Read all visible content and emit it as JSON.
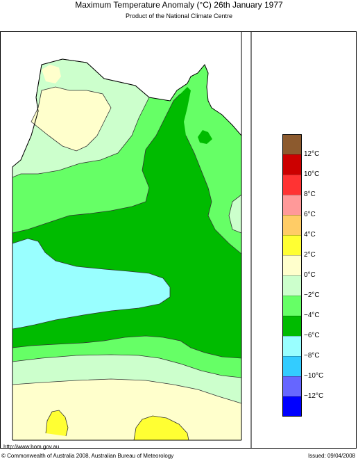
{
  "title": "Maximum Temperature Anomaly (°C)  26th January 1977",
  "subtitle": "Product of the National Climate Centre",
  "legend": {
    "bands": [
      {
        "label": "12°C",
        "color": "#8c5a2e"
      },
      {
        "label": "10°C",
        "color": "#cc0000"
      },
      {
        "label": "8°C",
        "color": "#ff3333"
      },
      {
        "label": "6°C",
        "color": "#ff9999"
      },
      {
        "label": "4°C",
        "color": "#ffcc66"
      },
      {
        "label": "2°C",
        "color": "#ffff33"
      },
      {
        "label": "0°C",
        "color": "#ffffcc"
      },
      {
        "label": "−2°C",
        "color": "#ccffcc"
      },
      {
        "label": "−4°C",
        "color": "#66ff66"
      },
      {
        "label": "−6°C",
        "color": "#00bb00"
      },
      {
        "label": "−8°C",
        "color": "#99ffff"
      },
      {
        "label": "−10°C",
        "color": "#33ccff"
      },
      {
        "label": "−12°C",
        "color": "#6666ff"
      },
      {
        "label": "",
        "color": "#0000ff"
      }
    ]
  },
  "footer": {
    "url": "http://www.bom.gov.au",
    "copyright": "© Commonwealth of Australia 2008, Australian Bureau of Meteorology",
    "issued": "Issued: 09/04/2008"
  }
}
